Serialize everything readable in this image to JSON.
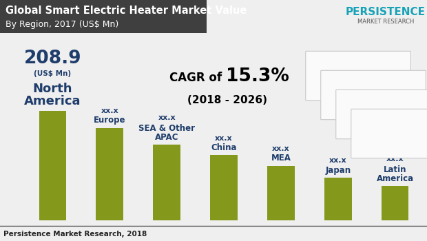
{
  "chart_data": {
    "type": "bar",
    "title": "Global Smart Electric Heater Market Value",
    "subtitle": "By Region, 2017 (US$ Mn)",
    "categories": [
      "North America",
      "Europe",
      "SEA & Other APAC",
      "China",
      "MEA",
      "Japan",
      "Latin America"
    ],
    "values": [
      208.9,
      176,
      144,
      124,
      104,
      81,
      65
    ],
    "value_labels": [
      "208.9",
      "xx.x",
      "xx.x",
      "xx.x",
      "xx.x",
      "xx.x",
      "xx.x"
    ],
    "unit_note": {
      "text": "(US$ Mn)",
      "category": "North America"
    },
    "cagr": {
      "prefix": "CAGR of",
      "value": "15.3%",
      "period": "(2018 - 2026)"
    },
    "logo": [
      "PERSISTENCE",
      "MARKET RESEARCH"
    ],
    "source": "Persistence Market Research, 2018",
    "color": "#84981c",
    "data_labels": true,
    "tick_labels": false,
    "grid": false
  }
}
